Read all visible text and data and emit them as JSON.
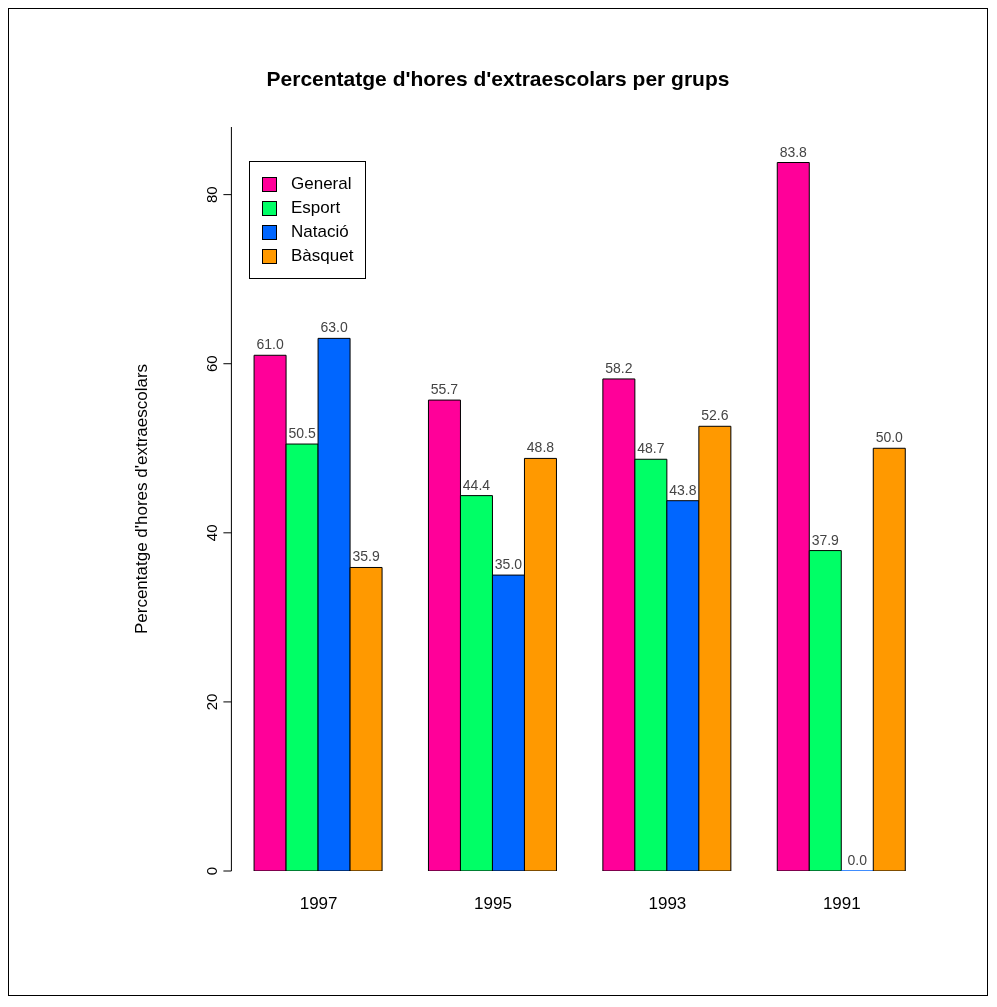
{
  "chart_data": {
    "type": "bar",
    "title": "Percentatge d'hores d'extraescolars per grups",
    "ylabel": "Percentatge d'hores d'extraescolars",
    "categories": [
      "1997",
      "1995",
      "1993",
      "1991"
    ],
    "series": [
      {
        "name": "General",
        "color": "#ff0099",
        "values": [
          61.0,
          55.7,
          58.2,
          83.8
        ],
        "value_labels": [
          "61.0",
          "55.7",
          "58.2",
          "83.8"
        ]
      },
      {
        "name": "Esport",
        "color": "#00ff66",
        "values": [
          50.5,
          44.4,
          48.7,
          37.9
        ],
        "value_labels": [
          "50.5",
          "44.4",
          "48.7",
          "37.9"
        ]
      },
      {
        "name": "Natació",
        "color": "#0066ff",
        "values": [
          63.0,
          35.0,
          43.8,
          0.0
        ],
        "value_labels": [
          "63.0",
          "35.0",
          "43.8",
          "0.0"
        ]
      },
      {
        "name": "Bàsquet",
        "color": "#ff9900",
        "values": [
          35.9,
          48.8,
          52.6,
          50.0
        ],
        "value_labels": [
          "35.9",
          "48.8",
          "52.6",
          "50.0"
        ]
      }
    ],
    "ylim": [
      0,
      88
    ],
    "yticks": [
      0,
      20,
      40,
      60,
      80
    ],
    "grid": false,
    "legend": "top left"
  }
}
